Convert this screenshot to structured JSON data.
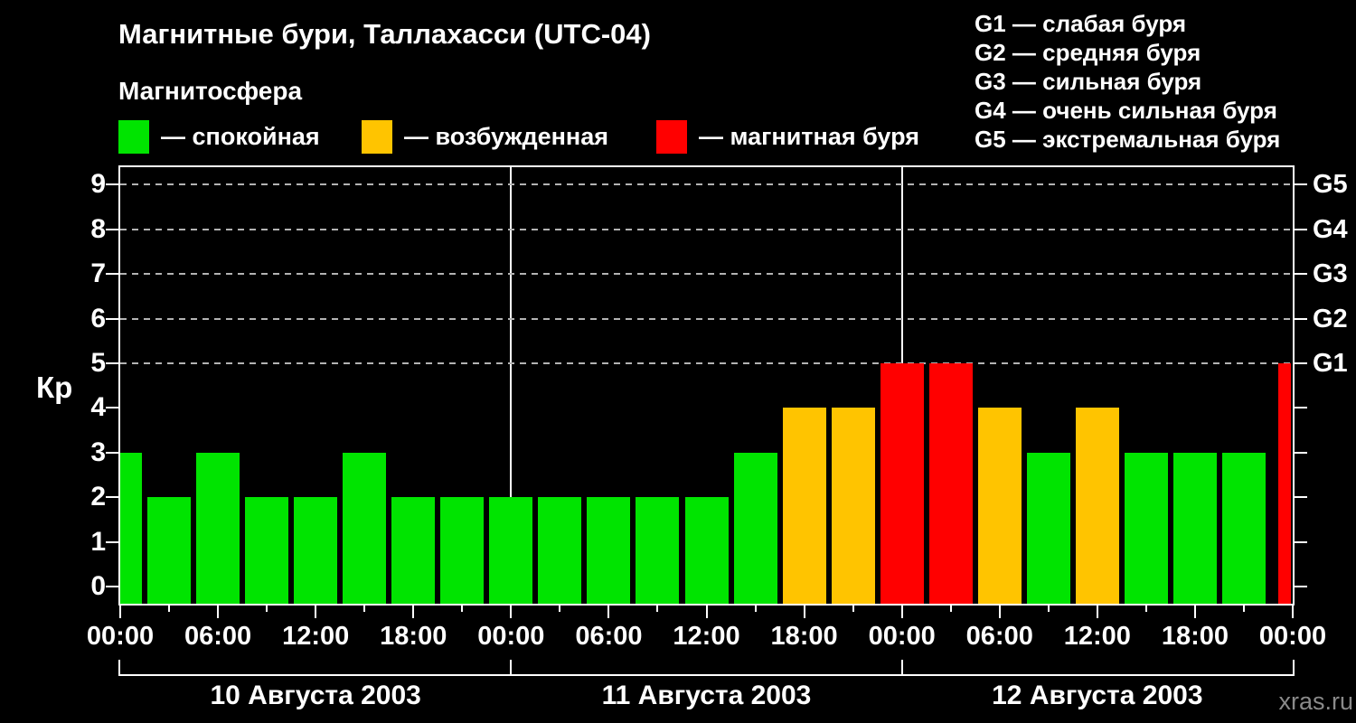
{
  "header": {
    "title": "Магнитные бури, Таллахасси (UTC-04)",
    "subtitle": "Магнитосфера"
  },
  "legend": [
    {
      "name": "quiet",
      "color": "#00e400",
      "label": "— спокойная"
    },
    {
      "name": "excited",
      "color": "#ffc400",
      "label": "— возбужденная"
    },
    {
      "name": "storm",
      "color": "#ff0000",
      "label": "— магнитная буря"
    }
  ],
  "storm_scale_legend": [
    "G1 — слабая буря",
    "G2 — средняя буря",
    "G3 — сильная буря",
    "G4 — очень сильная буря",
    "G5 — экстремальная буря"
  ],
  "watermark": "xras.ru",
  "chart_data": {
    "type": "bar",
    "title": "Магнитные бури, Таллахасси (UTC-04)",
    "xlabel": "",
    "ylabel": "Кр",
    "ylim": [
      0,
      9
    ],
    "yticks": [
      0,
      1,
      2,
      3,
      4,
      5,
      6,
      7,
      8,
      9
    ],
    "grid_levels": [
      5,
      6,
      7,
      8,
      9
    ],
    "grid_style": "dashed gray horizontal lines at storm levels only",
    "legend_position": "top-left",
    "right_axis_labels": [
      {
        "value": 5,
        "label": "G1"
      },
      {
        "value": 6,
        "label": "G2"
      },
      {
        "value": 7,
        "label": "G3"
      },
      {
        "value": 8,
        "label": "G4"
      },
      {
        "value": 9,
        "label": "G5"
      }
    ],
    "step_hours": 3,
    "x_axis_time_labels": [
      "00:00",
      "06:00",
      "12:00",
      "18:00",
      "00:00",
      "06:00",
      "12:00",
      "18:00",
      "00:00",
      "06:00",
      "12:00",
      "18:00",
      "00:00"
    ],
    "days": [
      {
        "date": "10 Августа 2003",
        "kp": [
          3,
          2,
          3,
          2,
          2,
          3,
          2,
          2
        ]
      },
      {
        "date": "11 Августа 2003",
        "kp": [
          2,
          2,
          2,
          2,
          2,
          3,
          4,
          4
        ]
      },
      {
        "date": "12 Августа 2003",
        "kp": [
          5,
          5,
          4,
          3,
          4,
          3,
          3,
          3
        ]
      }
    ],
    "trailing_bar": {
      "time": "00:00",
      "kp": 5
    },
    "colors": {
      "quiet": "#00e400",
      "excited": "#ffc400",
      "storm": "#ff0000"
    },
    "color_rule": "kp<=3 quiet(green), kp==4 excited(orange), kp>=5 storm(red)",
    "day_separator_lines": true
  }
}
